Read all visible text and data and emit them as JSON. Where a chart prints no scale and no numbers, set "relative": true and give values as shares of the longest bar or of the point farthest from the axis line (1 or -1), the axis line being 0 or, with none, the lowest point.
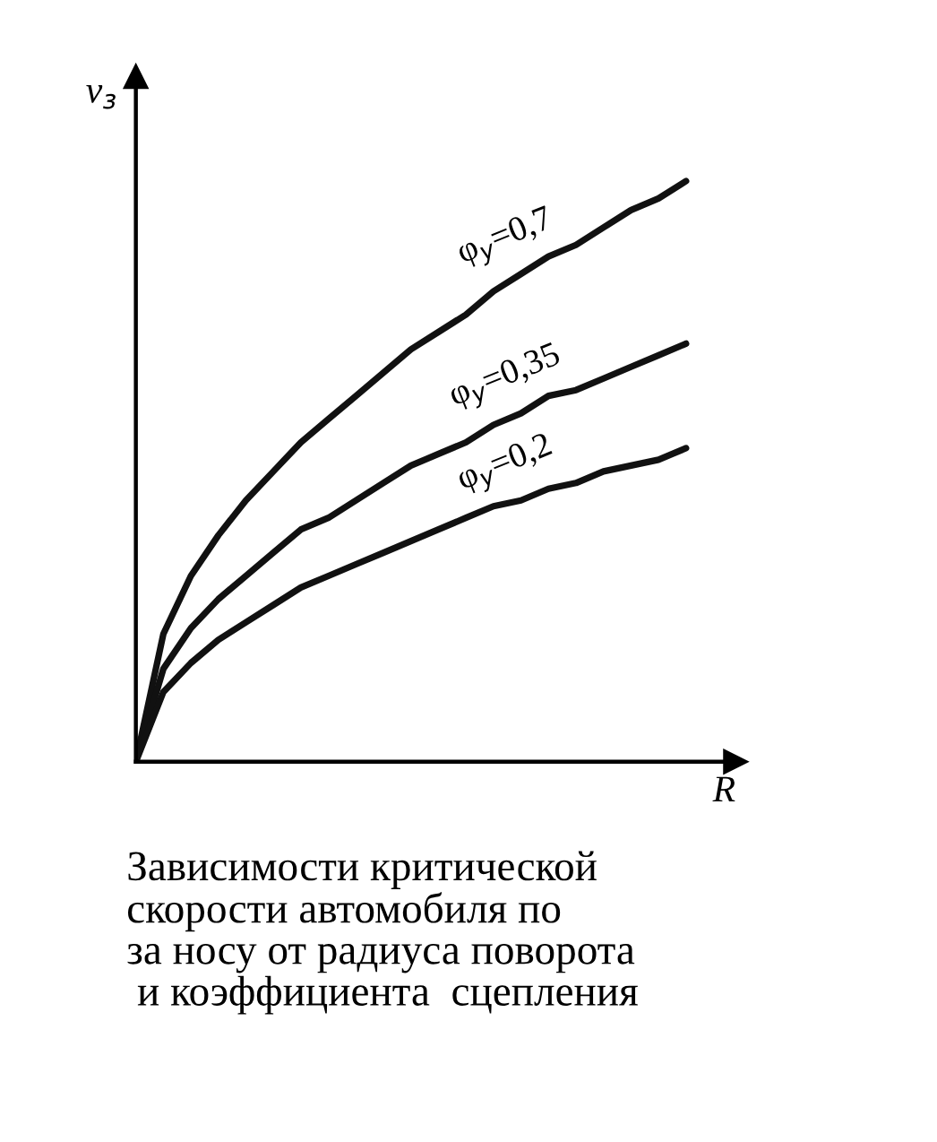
{
  "chart_data": {
    "type": "line",
    "relative": true,
    "xlabel": "R",
    "ylabel": "v$_{з}$",
    "categories": [
      null,
      null,
      null,
      null,
      null,
      null,
      null,
      null,
      null,
      null,
      null,
      null,
      null,
      null,
      null,
      null,
      null,
      null,
      null,
      null,
      null
    ],
    "series": [
      {
        "name": "φ$_{y}$=0,7",
        "color": "#111111",
        "values": [
          0,
          0.22,
          0.32,
          0.39,
          0.45,
          0.5,
          0.55,
          0.59,
          0.63,
          0.67,
          0.71,
          0.74,
          0.77,
          0.81,
          0.84,
          0.87,
          0.89,
          0.92,
          0.95,
          0.97,
          1
        ]
      },
      {
        "name": "φ$_{y}$=0,35",
        "color": "#111111",
        "values": [
          0,
          0.16,
          0.23,
          0.28,
          0.32,
          0.36,
          0.4,
          0.42,
          0.45,
          0.48,
          0.51,
          0.53,
          0.55,
          0.58,
          0.6,
          0.63,
          0.64,
          0.66,
          0.68,
          0.7,
          0.72
        ]
      },
      {
        "name": "φ$_{y}$=0,2",
        "color": "#111111",
        "values": [
          0,
          0.12,
          0.17,
          0.21,
          0.24,
          0.27,
          0.3,
          0.32,
          0.34,
          0.36,
          0.38,
          0.4,
          0.42,
          0.44,
          0.45,
          0.47,
          0.48,
          0.5,
          0.51,
          0.52,
          0.54
        ]
      }
    ],
    "annotations": [
      "Зависимости критической\nскорости автомобиля по\nза носу от радиуса поворота\n и коэффициента  сцепления"
    ],
    "marker": "none",
    "line_style": "solid"
  }
}
